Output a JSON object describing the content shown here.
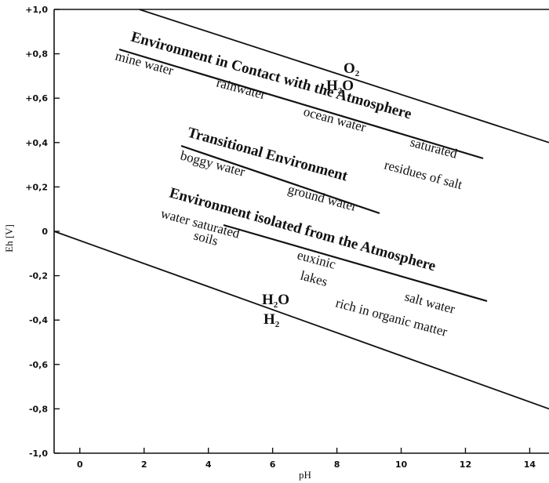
{
  "chart_data": {
    "type": "line",
    "title": "",
    "xlabel": "pH",
    "ylabel": "Eh [V]",
    "xlim": [
      -0.8,
      14.6
    ],
    "ylim": [
      -1.0,
      1.0
    ],
    "x_ticks": [
      0,
      2,
      4,
      6,
      8,
      10,
      12,
      14
    ],
    "x_tick_labels": [
      "0",
      "2",
      "4",
      "6",
      "8",
      "10",
      "12",
      "14"
    ],
    "y_ticks": [
      1.0,
      0.8,
      0.6,
      0.4,
      0.2,
      0,
      -0.2,
      -0.4,
      -0.6,
      -0.8,
      -1.0
    ],
    "y_tick_labels": [
      "+1,0",
      "+0,8",
      "+0,6",
      "+0,4",
      "+0,2",
      "0",
      "-0,2",
      "-0,4",
      "-0,6",
      "-0,8",
      "-1,0"
    ],
    "grid": false,
    "legend": "none",
    "series": [
      {
        "name": "O2 / H2O",
        "x": [
          1.85,
          14.6
        ],
        "y": [
          1.0,
          0.4
        ],
        "color": "#111111"
      },
      {
        "name": "H2O / H2",
        "x": [
          -0.8,
          14.6
        ],
        "y": [
          0.0,
          -0.8
        ],
        "color": "#111111"
      }
    ],
    "annotations": {
      "upper_couple": {
        "oxidized": "O",
        "oxidized_sub": "2",
        "reduced": "H",
        "reduced_sub": "2",
        "reduced_tail": "O"
      },
      "lower_couple": {
        "oxidized": "H",
        "oxidized_sub": "2",
        "oxidized_tail": "O",
        "reduced": "H",
        "reduced_sub": "2"
      },
      "environments": [
        {
          "heading": "Environment in Contact with the Atmosphere",
          "examples": [
            "mine water",
            "rainwater",
            "ocean water",
            "saturated",
            "residues of salt"
          ]
        },
        {
          "heading": "Transitional Environment",
          "examples": [
            "boggy water",
            "ground water"
          ]
        },
        {
          "heading": "Environment isolated from the Atmosphere",
          "examples": [
            "water saturated",
            "soils",
            "euxinic",
            "lakes",
            "salt water",
            "rich in organic matter"
          ]
        }
      ]
    }
  }
}
